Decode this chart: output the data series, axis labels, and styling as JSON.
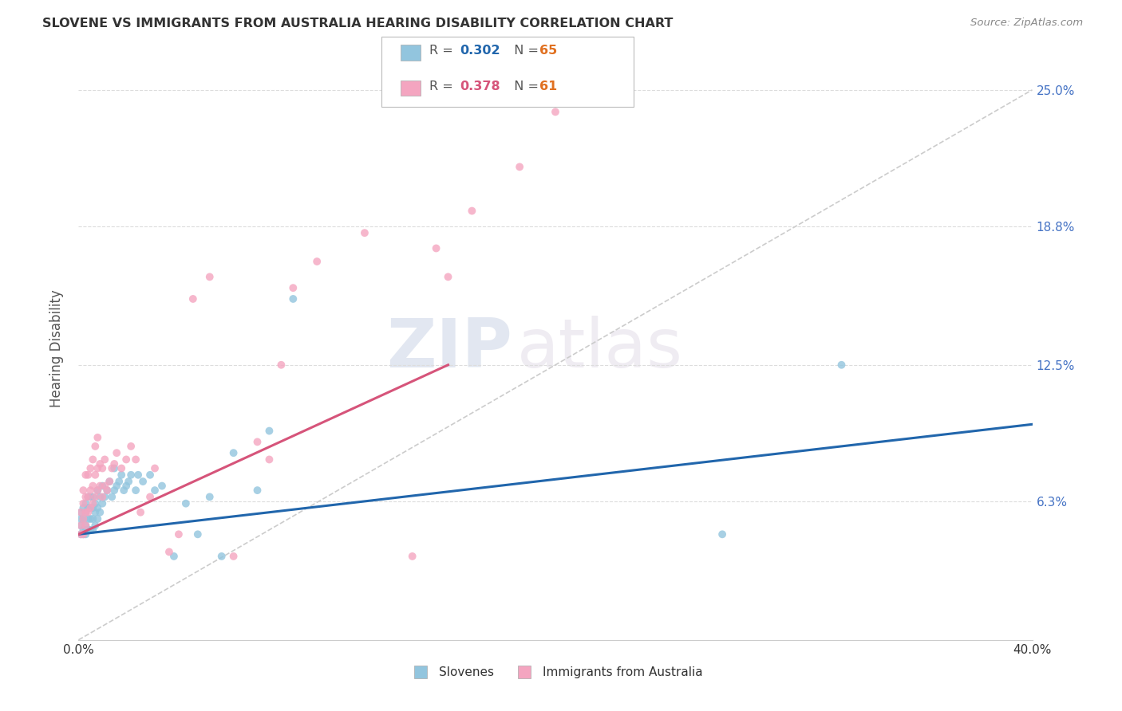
{
  "title": "SLOVENE VS IMMIGRANTS FROM AUSTRALIA HEARING DISABILITY CORRELATION CHART",
  "source": "Source: ZipAtlas.com",
  "ylabel": "Hearing Disability",
  "ytick_labels": [
    "6.3%",
    "12.5%",
    "18.8%",
    "25.0%"
  ],
  "ytick_values": [
    0.063,
    0.125,
    0.188,
    0.25
  ],
  "xlim": [
    0.0,
    0.4
  ],
  "ylim": [
    0.0,
    0.265
  ],
  "blue_color": "#92c5de",
  "pink_color": "#f4a5c0",
  "blue_line_color": "#2166ac",
  "pink_line_color": "#d6547a",
  "diagonal_color": "#cccccc",
  "watermark_zip": "ZIP",
  "watermark_atlas": "atlas",
  "blue_line_x0": 0.0,
  "blue_line_y0": 0.048,
  "blue_line_x1": 0.4,
  "blue_line_y1": 0.098,
  "pink_line_x0": 0.0,
  "pink_line_y0": 0.048,
  "pink_line_x1": 0.155,
  "pink_line_y1": 0.125,
  "slovene_x": [
    0.001,
    0.001,
    0.001,
    0.001,
    0.002,
    0.002,
    0.002,
    0.002,
    0.003,
    0.003,
    0.003,
    0.003,
    0.003,
    0.004,
    0.004,
    0.004,
    0.004,
    0.005,
    0.005,
    0.005,
    0.005,
    0.006,
    0.006,
    0.006,
    0.006,
    0.007,
    0.007,
    0.007,
    0.008,
    0.008,
    0.008,
    0.009,
    0.009,
    0.01,
    0.01,
    0.011,
    0.012,
    0.013,
    0.014,
    0.015,
    0.015,
    0.016,
    0.017,
    0.018,
    0.019,
    0.02,
    0.021,
    0.022,
    0.024,
    0.025,
    0.027,
    0.03,
    0.032,
    0.035,
    0.04,
    0.045,
    0.05,
    0.055,
    0.06,
    0.065,
    0.075,
    0.08,
    0.09,
    0.27,
    0.32
  ],
  "slovene_y": [
    0.048,
    0.052,
    0.055,
    0.058,
    0.048,
    0.05,
    0.055,
    0.06,
    0.048,
    0.05,
    0.052,
    0.058,
    0.062,
    0.05,
    0.055,
    0.06,
    0.065,
    0.05,
    0.055,
    0.06,
    0.065,
    0.05,
    0.055,
    0.06,
    0.065,
    0.052,
    0.058,
    0.062,
    0.055,
    0.06,
    0.068,
    0.058,
    0.065,
    0.062,
    0.07,
    0.065,
    0.068,
    0.072,
    0.065,
    0.068,
    0.078,
    0.07,
    0.072,
    0.075,
    0.068,
    0.07,
    0.072,
    0.075,
    0.068,
    0.075,
    0.072,
    0.075,
    0.068,
    0.07,
    0.038,
    0.062,
    0.048,
    0.065,
    0.038,
    0.085,
    0.068,
    0.095,
    0.155,
    0.048,
    0.125
  ],
  "aus_x": [
    0.001,
    0.001,
    0.001,
    0.002,
    0.002,
    0.002,
    0.002,
    0.003,
    0.003,
    0.003,
    0.003,
    0.004,
    0.004,
    0.004,
    0.005,
    0.005,
    0.005,
    0.006,
    0.006,
    0.006,
    0.007,
    0.007,
    0.007,
    0.008,
    0.008,
    0.008,
    0.009,
    0.009,
    0.01,
    0.01,
    0.011,
    0.011,
    0.012,
    0.013,
    0.014,
    0.015,
    0.016,
    0.018,
    0.02,
    0.022,
    0.024,
    0.026,
    0.03,
    0.032,
    0.038,
    0.042,
    0.048,
    0.055,
    0.065,
    0.075,
    0.08,
    0.085,
    0.09,
    0.1,
    0.12,
    0.14,
    0.15,
    0.155,
    0.165,
    0.185,
    0.2
  ],
  "aus_y": [
    0.048,
    0.052,
    0.058,
    0.048,
    0.055,
    0.062,
    0.068,
    0.052,
    0.058,
    0.065,
    0.075,
    0.058,
    0.065,
    0.075,
    0.06,
    0.068,
    0.078,
    0.062,
    0.07,
    0.082,
    0.065,
    0.075,
    0.088,
    0.068,
    0.078,
    0.092,
    0.07,
    0.08,
    0.065,
    0.078,
    0.07,
    0.082,
    0.068,
    0.072,
    0.078,
    0.08,
    0.085,
    0.078,
    0.082,
    0.088,
    0.082,
    0.058,
    0.065,
    0.078,
    0.04,
    0.048,
    0.155,
    0.165,
    0.038,
    0.09,
    0.082,
    0.125,
    0.16,
    0.172,
    0.185,
    0.038,
    0.178,
    0.165,
    0.195,
    0.215,
    0.24
  ]
}
